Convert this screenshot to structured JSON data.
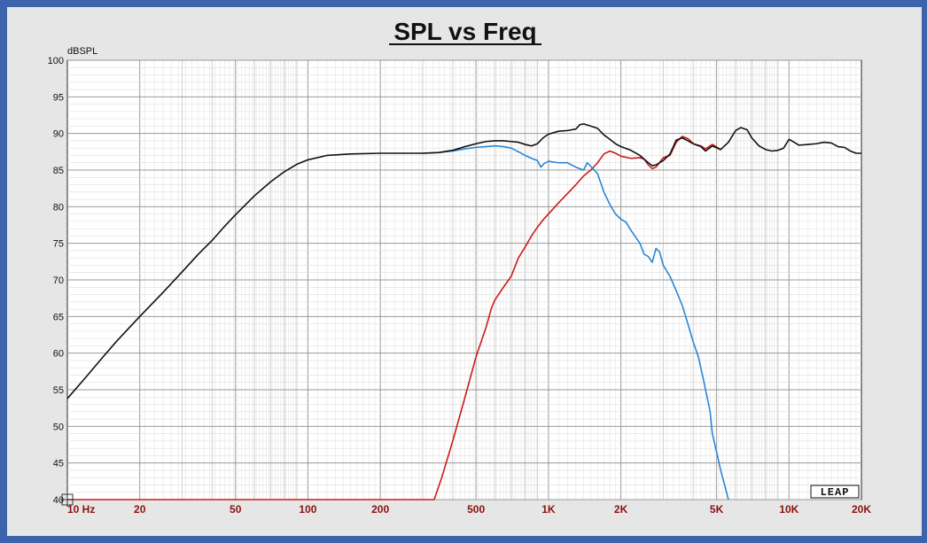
{
  "chart_data": {
    "type": "line",
    "title": "SPL vs Freq",
    "ylabel": "dBSPL",
    "xlabel": "",
    "x_scale": "log",
    "xlim": [
      10,
      20000
    ],
    "ylim": [
      40,
      100
    ],
    "grid": true,
    "yticks": [
      "100",
      "95",
      "90",
      "85",
      "80",
      "75",
      "70",
      "65",
      "60",
      "55",
      "50",
      "45",
      "40"
    ],
    "xticks": [
      {
        "value": 10,
        "label": "10 Hz"
      },
      {
        "value": 20,
        "label": "20"
      },
      {
        "value": 50,
        "label": "50"
      },
      {
        "value": 100,
        "label": "100"
      },
      {
        "value": 200,
        "label": "200"
      },
      {
        "value": 500,
        "label": "500"
      },
      {
        "value": 1000,
        "label": "1K"
      },
      {
        "value": 2000,
        "label": "2K"
      },
      {
        "value": 5000,
        "label": "5K"
      },
      {
        "value": 10000,
        "label": "10K"
      },
      {
        "value": 20000,
        "label": "20K"
      }
    ],
    "series": [
      {
        "color": "#111111",
        "points": [
          [
            10,
            53.8
          ],
          [
            12,
            56.8
          ],
          [
            14,
            59.4
          ],
          [
            16,
            61.6
          ],
          [
            18,
            63.4
          ],
          [
            20,
            65.0
          ],
          [
            25,
            68.3
          ],
          [
            30,
            71.1
          ],
          [
            35,
            73.5
          ],
          [
            40,
            75.4
          ],
          [
            45,
            77.3
          ],
          [
            50,
            78.9
          ],
          [
            60,
            81.5
          ],
          [
            70,
            83.4
          ],
          [
            80,
            84.8
          ],
          [
            90,
            85.8
          ],
          [
            100,
            86.4
          ],
          [
            120,
            87.0
          ],
          [
            150,
            87.2
          ],
          [
            200,
            87.3
          ],
          [
            300,
            87.3
          ],
          [
            350,
            87.4
          ],
          [
            400,
            87.7
          ],
          [
            450,
            88.2
          ],
          [
            500,
            88.6
          ],
          [
            550,
            88.9
          ],
          [
            600,
            89.0
          ],
          [
            650,
            89.0
          ],
          [
            700,
            88.9
          ],
          [
            750,
            88.8
          ],
          [
            800,
            88.5
          ],
          [
            850,
            88.3
          ],
          [
            900,
            88.6
          ],
          [
            950,
            89.4
          ],
          [
            1000,
            89.9
          ],
          [
            1100,
            90.3
          ],
          [
            1200,
            90.4
          ],
          [
            1300,
            90.6
          ],
          [
            1350,
            91.2
          ],
          [
            1400,
            91.3
          ],
          [
            1500,
            91.0
          ],
          [
            1600,
            90.7
          ],
          [
            1700,
            89.8
          ],
          [
            1800,
            89.2
          ],
          [
            1900,
            88.6
          ],
          [
            2000,
            88.2
          ],
          [
            2200,
            87.7
          ],
          [
            2400,
            87.0
          ],
          [
            2600,
            86.0
          ],
          [
            2700,
            85.6
          ],
          [
            2800,
            85.7
          ],
          [
            3000,
            86.3
          ],
          [
            3200,
            87.2
          ],
          [
            3400,
            89.1
          ],
          [
            3600,
            89.4
          ],
          [
            3800,
            89.0
          ],
          [
            4000,
            88.6
          ],
          [
            4300,
            88.2
          ],
          [
            4500,
            87.6
          ],
          [
            4800,
            88.3
          ],
          [
            5200,
            87.8
          ],
          [
            5600,
            88.8
          ],
          [
            6000,
            90.4
          ],
          [
            6300,
            90.8
          ],
          [
            6700,
            90.5
          ],
          [
            7000,
            89.4
          ],
          [
            7500,
            88.3
          ],
          [
            8000,
            87.8
          ],
          [
            8500,
            87.6
          ],
          [
            9000,
            87.7
          ],
          [
            9500,
            88.0
          ],
          [
            10000,
            89.2
          ],
          [
            10500,
            88.8
          ],
          [
            11000,
            88.4
          ],
          [
            12000,
            88.5
          ],
          [
            13000,
            88.6
          ],
          [
            14000,
            88.8
          ],
          [
            15000,
            88.7
          ],
          [
            16000,
            88.2
          ],
          [
            17000,
            88.1
          ],
          [
            18000,
            87.6
          ],
          [
            19000,
            87.3
          ],
          [
            20000,
            87.3
          ]
        ]
      },
      {
        "color": "#2a86d8",
        "points": [
          [
            300,
            87.3
          ],
          [
            350,
            87.4
          ],
          [
            400,
            87.6
          ],
          [
            450,
            87.9
          ],
          [
            500,
            88.1
          ],
          [
            550,
            88.2
          ],
          [
            600,
            88.3
          ],
          [
            650,
            88.2
          ],
          [
            700,
            88.0
          ],
          [
            750,
            87.5
          ],
          [
            800,
            87.0
          ],
          [
            850,
            86.6
          ],
          [
            900,
            86.3
          ],
          [
            930,
            85.4
          ],
          [
            960,
            85.9
          ],
          [
            1000,
            86.2
          ],
          [
            1100,
            86.0
          ],
          [
            1200,
            86.0
          ],
          [
            1300,
            85.4
          ],
          [
            1400,
            85.0
          ],
          [
            1450,
            86.0
          ],
          [
            1500,
            85.5
          ],
          [
            1600,
            84.5
          ],
          [
            1700,
            82.0
          ],
          [
            1800,
            80.3
          ],
          [
            1900,
            79.0
          ],
          [
            2000,
            78.3
          ],
          [
            2100,
            77.9
          ],
          [
            2200,
            76.8
          ],
          [
            2400,
            75.0
          ],
          [
            2500,
            73.5
          ],
          [
            2600,
            73.2
          ],
          [
            2700,
            72.4
          ],
          [
            2800,
            74.3
          ],
          [
            2900,
            73.8
          ],
          [
            3000,
            72.0
          ],
          [
            3200,
            70.5
          ],
          [
            3400,
            68.5
          ],
          [
            3600,
            66.5
          ],
          [
            3800,
            64.0
          ],
          [
            4000,
            61.5
          ],
          [
            4200,
            59.5
          ],
          [
            4400,
            56.5
          ],
          [
            4600,
            53.5
          ],
          [
            4700,
            52.0
          ],
          [
            4800,
            49.0
          ],
          [
            5000,
            46.5
          ],
          [
            5200,
            44.0
          ],
          [
            5400,
            42.0
          ],
          [
            5600,
            40.0
          ]
        ]
      },
      {
        "color": "#cc1a1a",
        "points": [
          [
            10,
            40.0
          ],
          [
            200,
            40.0
          ],
          [
            300,
            40.0
          ],
          [
            335,
            40.0
          ],
          [
            360,
            43.0
          ],
          [
            400,
            48.0
          ],
          [
            450,
            54.0
          ],
          [
            500,
            59.5
          ],
          [
            550,
            63.5
          ],
          [
            580,
            66.2
          ],
          [
            600,
            67.3
          ],
          [
            650,
            69.0
          ],
          [
            700,
            70.5
          ],
          [
            750,
            73.0
          ],
          [
            800,
            74.5
          ],
          [
            850,
            76.0
          ],
          [
            900,
            77.2
          ],
          [
            950,
            78.2
          ],
          [
            1000,
            79.0
          ],
          [
            1100,
            80.5
          ],
          [
            1200,
            81.8
          ],
          [
            1300,
            83.0
          ],
          [
            1400,
            84.2
          ],
          [
            1500,
            85.0
          ],
          [
            1600,
            86.0
          ],
          [
            1700,
            87.2
          ],
          [
            1800,
            87.6
          ],
          [
            1900,
            87.3
          ],
          [
            2000,
            86.9
          ],
          [
            2200,
            86.6
          ],
          [
            2400,
            86.7
          ],
          [
            2500,
            86.5
          ],
          [
            2600,
            85.7
          ],
          [
            2700,
            85.2
          ],
          [
            2800,
            85.4
          ],
          [
            3000,
            86.7
          ],
          [
            3200,
            87.0
          ],
          [
            3400,
            88.8
          ],
          [
            3600,
            89.6
          ],
          [
            3800,
            89.3
          ],
          [
            4000,
            88.6
          ],
          [
            4300,
            88.3
          ],
          [
            4500,
            87.9
          ],
          [
            4800,
            88.5
          ],
          [
            5200,
            87.8
          ]
        ]
      }
    ]
  },
  "logo": "LEAP"
}
